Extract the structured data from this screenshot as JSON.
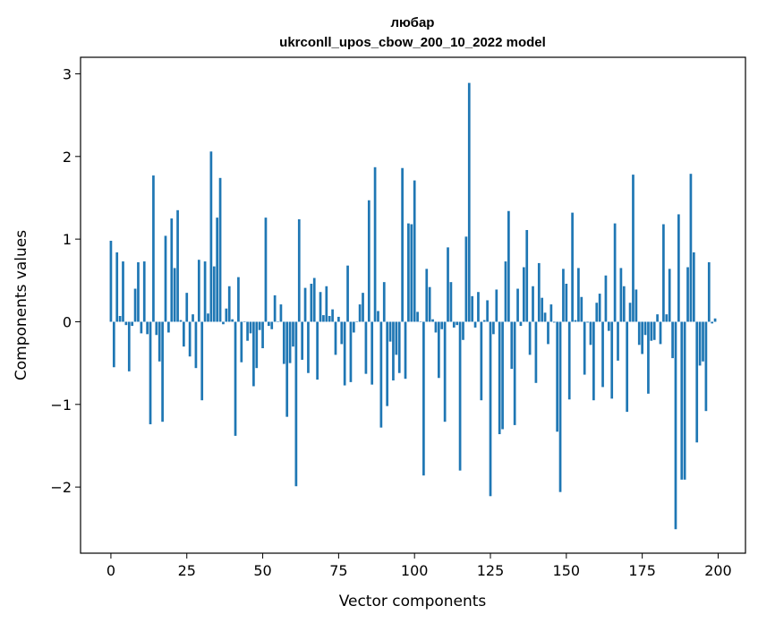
{
  "chart_data": {
    "type": "bar",
    "title": "любар",
    "subtitle": "ukrconll_upos_cbow_200_10_2022 model",
    "xlabel": "Vector components",
    "ylabel": "Components values",
    "xlim": [
      -10,
      209
    ],
    "ylim": [
      -2.8,
      3.2
    ],
    "xticks": [
      0,
      25,
      50,
      75,
      100,
      125,
      150,
      175,
      200
    ],
    "xtick_labels": [
      "0",
      "25",
      "50",
      "75",
      "100",
      "125",
      "150",
      "175",
      "200"
    ],
    "yticks": [
      -2,
      -1,
      0,
      1,
      2,
      3
    ],
    "ytick_labels": [
      "−2",
      "−1",
      "0",
      "1",
      "2",
      "3"
    ],
    "grid": false,
    "bar_color": "#1f77b4",
    "x": [
      0,
      1,
      2,
      3,
      4,
      5,
      6,
      7,
      8,
      9,
      10,
      11,
      12,
      13,
      14,
      15,
      16,
      17,
      18,
      19,
      20,
      21,
      22,
      23,
      24,
      25,
      26,
      27,
      28,
      29,
      30,
      31,
      32,
      33,
      34,
      35,
      36,
      37,
      38,
      39,
      40,
      41,
      42,
      43,
      44,
      45,
      46,
      47,
      48,
      49,
      50,
      51,
      52,
      53,
      54,
      55,
      56,
      57,
      58,
      59,
      60,
      61,
      62,
      63,
      64,
      65,
      66,
      67,
      68,
      69,
      70,
      71,
      72,
      73,
      74,
      75,
      76,
      77,
      78,
      79,
      80,
      81,
      82,
      83,
      84,
      85,
      86,
      87,
      88,
      89,
      90,
      91,
      92,
      93,
      94,
      95,
      96,
      97,
      98,
      99,
      100,
      101,
      102,
      103,
      104,
      105,
      106,
      107,
      108,
      109,
      110,
      111,
      112,
      113,
      114,
      115,
      116,
      117,
      118,
      119,
      120,
      121,
      122,
      123,
      124,
      125,
      126,
      127,
      128,
      129,
      130,
      131,
      132,
      133,
      134,
      135,
      136,
      137,
      138,
      139,
      140,
      141,
      142,
      143,
      144,
      145,
      146,
      147,
      148,
      149,
      150,
      151,
      152,
      153,
      154,
      155,
      156,
      157,
      158,
      159,
      160,
      161,
      162,
      163,
      164,
      165,
      166,
      167,
      168,
      169,
      170,
      171,
      172,
      173,
      174,
      175,
      176,
      177,
      178,
      179,
      180,
      181,
      182,
      183,
      184,
      185,
      186,
      187,
      188,
      189,
      190,
      191,
      192,
      193,
      194,
      195,
      196,
      197,
      198,
      199
    ],
    "values": [
      0.98,
      -0.55,
      0.84,
      0.07,
      0.73,
      -0.04,
      -0.6,
      -0.05,
      0.4,
      0.72,
      -0.14,
      0.73,
      -0.15,
      -1.24,
      1.77,
      -0.16,
      -0.48,
      -1.21,
      1.04,
      -0.13,
      1.25,
      0.65,
      1.35,
      0.02,
      -0.3,
      0.35,
      -0.42,
      0.09,
      -0.56,
      0.75,
      -0.95,
      0.73,
      0.1,
      2.06,
      0.67,
      1.26,
      1.74,
      -0.03,
      0.16,
      0.43,
      0.03,
      -1.38,
      0.54,
      -0.49,
      0.0,
      -0.23,
      -0.14,
      -0.78,
      -0.56,
      -0.1,
      -0.32,
      1.26,
      -0.05,
      -0.09,
      0.32,
      0.0,
      0.21,
      -0.51,
      -1.15,
      -0.5,
      -0.3,
      -1.99,
      1.24,
      -0.46,
      0.41,
      -0.62,
      0.46,
      0.53,
      -0.7,
      0.36,
      0.08,
      0.43,
      0.07,
      0.15,
      -0.4,
      0.06,
      -0.27,
      -0.77,
      0.68,
      -0.73,
      -0.13,
      0.0,
      0.21,
      0.35,
      -0.63,
      1.47,
      -0.76,
      1.87,
      0.13,
      -1.28,
      0.48,
      -1.02,
      -0.24,
      -0.71,
      -0.4,
      -0.62,
      1.86,
      -0.69,
      1.19,
      1.18,
      1.71,
      0.12,
      0.0,
      -1.86,
      0.64,
      0.42,
      0.03,
      -0.13,
      -0.68,
      -0.09,
      -1.21,
      0.9,
      0.48,
      -0.07,
      -0.04,
      -1.8,
      -0.22,
      1.03,
      2.89,
      0.31,
      -0.07,
      0.36,
      -0.95,
      0.02,
      0.26,
      -2.11,
      -0.15,
      0.39,
      -1.36,
      -1.3,
      0.73,
      1.34,
      -0.57,
      -1.25,
      0.4,
      -0.05,
      0.66,
      1.11,
      -0.4,
      0.43,
      -0.74,
      0.71,
      0.29,
      0.11,
      -0.27,
      0.21,
      -0.01,
      -1.33,
      -2.06,
      0.64,
      0.46,
      -0.94,
      1.32,
      0.02,
      0.65,
      0.3,
      -0.64,
      -0.01,
      -0.28,
      -0.95,
      0.23,
      0.34,
      -0.79,
      0.56,
      -0.11,
      -0.93,
      1.19,
      -0.47,
      0.65,
      0.43,
      -1.09,
      0.23,
      1.78,
      0.39,
      -0.28,
      -0.39,
      -0.16,
      -0.87,
      -0.23,
      -0.22,
      0.09,
      -0.27,
      1.18,
      0.09,
      0.64,
      -0.44,
      -2.51,
      1.3,
      -1.91,
      -1.91,
      0.66,
      1.79,
      0.84,
      -1.46,
      -0.53,
      -0.48,
      -1.08,
      0.72,
      -0.02,
      0.04
    ]
  }
}
